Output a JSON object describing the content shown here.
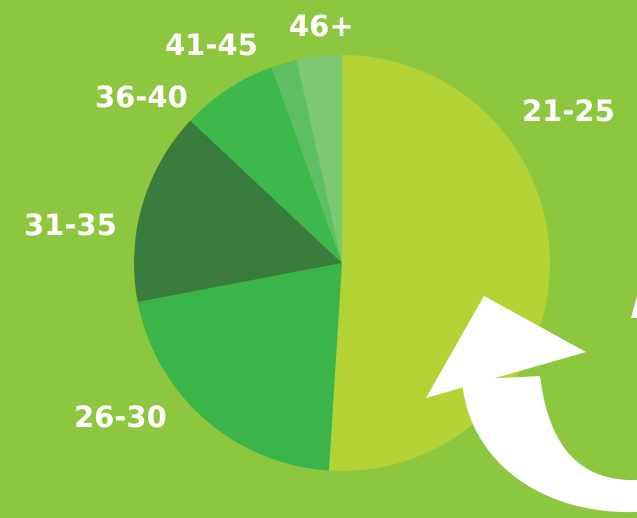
{
  "colors": {
    "background": "#8dc63f",
    "arrow": "#ffffff",
    "label": "#ffffff"
  },
  "chart_data": {
    "type": "pie",
    "categories": [
      "21-25",
      "26-30",
      "31-35",
      "36-40",
      "41-45",
      "46+"
    ],
    "values": [
      51,
      21,
      15,
      7.5,
      2,
      3.5
    ],
    "unit": "%",
    "colors": [
      "#b2d235",
      "#3bb54a",
      "#3a7c3d",
      "#3cb94a",
      "#5ebf62",
      "#7cc873"
    ],
    "title": "",
    "legend": "none"
  }
}
